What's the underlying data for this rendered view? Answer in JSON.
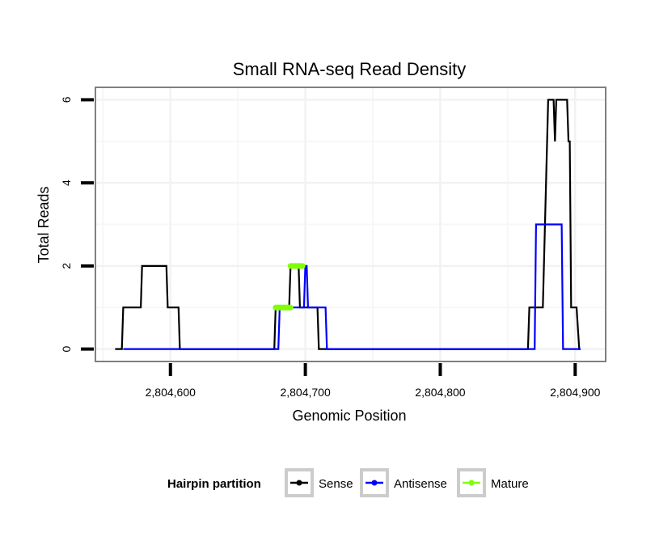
{
  "chart_data": {
    "type": "line",
    "title": "Small RNA-seq Read Density",
    "xlabel": "Genomic Position",
    "ylabel": "Total Reads",
    "xlim": [
      2804545,
      2804922
    ],
    "ylim": [
      -0.28,
      6.28
    ],
    "xticks": [
      2804600,
      2804700,
      2804800,
      2804900
    ],
    "xtick_labels": [
      "2,804,600",
      "2,804,700",
      "2,804,800",
      "2,804,900"
    ],
    "yticks": [
      0,
      2,
      4,
      6
    ],
    "ytick_labels": [
      "0",
      "2",
      "4",
      "6"
    ],
    "grid": true,
    "legend": {
      "title": "Hairpin partition",
      "placement": "bottom",
      "entries": [
        {
          "name": "Sense",
          "color": "#000000"
        },
        {
          "name": "Antisense",
          "color": "#0000ff"
        },
        {
          "name": "Mature",
          "color": "#7fff00"
        }
      ]
    },
    "series": [
      {
        "name": "Sense",
        "color": "#000000",
        "points": [
          [
            2804559,
            0
          ],
          [
            2804564,
            0
          ],
          [
            2804565,
            1
          ],
          [
            2804578,
            1
          ],
          [
            2804579,
            2
          ],
          [
            2804597,
            2
          ],
          [
            2804598,
            1
          ],
          [
            2804606,
            1
          ],
          [
            2804607,
            0
          ],
          [
            2804677,
            0
          ],
          [
            2804678,
            1
          ],
          [
            2804688,
            1
          ],
          [
            2804689,
            2
          ],
          [
            2804695,
            2
          ],
          [
            2804696,
            1
          ],
          [
            2804709,
            1
          ],
          [
            2804710,
            0
          ],
          [
            2804865,
            0
          ],
          [
            2804866,
            1
          ],
          [
            2804876,
            1
          ],
          [
            2804880,
            6
          ],
          [
            2804884,
            6
          ],
          [
            2804885,
            5
          ],
          [
            2804886,
            6
          ],
          [
            2804894,
            6
          ],
          [
            2804895,
            5
          ],
          [
            2804896,
            5
          ],
          [
            2804897,
            1
          ],
          [
            2804901,
            1
          ],
          [
            2804903,
            0
          ],
          [
            2804904,
            0
          ]
        ]
      },
      {
        "name": "Antisense",
        "color": "#0000ff",
        "points": [
          [
            2804565,
            0
          ],
          [
            2804680,
            0
          ],
          [
            2804681,
            1
          ],
          [
            2804699,
            1
          ],
          [
            2804700,
            2
          ],
          [
            2804701,
            2
          ],
          [
            2804702,
            1
          ],
          [
            2804715,
            1
          ],
          [
            2804716,
            0
          ],
          [
            2804870,
            0
          ],
          [
            2804871,
            3
          ],
          [
            2804890,
            3
          ],
          [
            2804891,
            0
          ],
          [
            2804904,
            0
          ]
        ]
      },
      {
        "name": "Mature",
        "color": "#7fff00",
        "segments": [
          [
            [
              2804678,
              1
            ],
            [
              2804689,
              1
            ]
          ],
          [
            [
              2804689,
              2
            ],
            [
              2804698,
              2
            ]
          ]
        ]
      }
    ]
  }
}
